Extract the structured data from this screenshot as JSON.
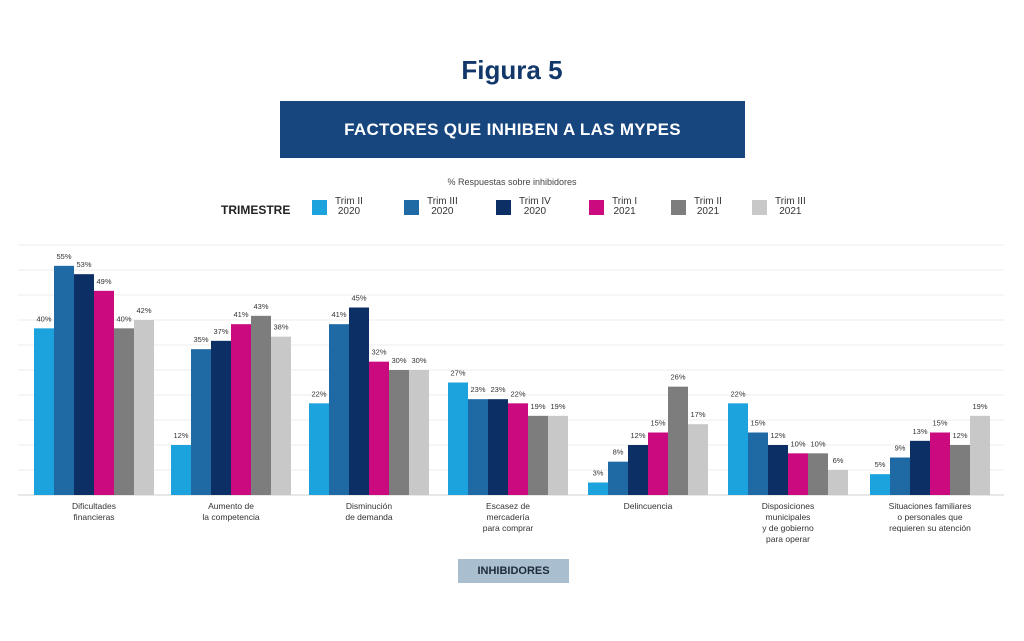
{
  "figure_title": "Figura 5",
  "banner_title": "FACTORES QUE INHIBEN A LAS MYPES",
  "subtitle": "% Respuestas sobre inhibidores",
  "legend": {
    "title": "TRIMESTRE",
    "items": [
      {
        "line1": "Trim II",
        "line2": "2020",
        "color": "#1ca3dd"
      },
      {
        "line1": "Trim III",
        "line2": "2020",
        "color": "#1f6aa5"
      },
      {
        "line1": "Trim IV",
        "line2": "2020",
        "color": "#0c2f66"
      },
      {
        "line1": "Trim I",
        "line2": "2021",
        "color": "#cc0a80"
      },
      {
        "line1": "Trim II",
        "line2": "2021",
        "color": "#7d7d7d"
      },
      {
        "line1": "Trim III",
        "line2": "2021",
        "color": "#c8c8c8"
      }
    ]
  },
  "x_axis_title": "INHIBIDORES",
  "chart_data": {
    "type": "bar",
    "title": "FACTORES QUE INHIBEN A LAS MYPES",
    "subtitle": "% Respuestas sobre inhibidores",
    "xlabel": "INHIBIDORES",
    "ylabel": "",
    "ylim": [
      0,
      60
    ],
    "grid": true,
    "legend_position": "top",
    "categories": [
      [
        "Dificultades",
        "financieras"
      ],
      [
        "Aumento de",
        "la competencia"
      ],
      [
        "Disminución",
        "de demanda"
      ],
      [
        "Escasez de",
        "mercadería",
        "para comprar"
      ],
      [
        "Delincuencia"
      ],
      [
        "Disposiciones",
        "municipales",
        "y de gobierno",
        "para operar"
      ],
      [
        "Situaciones familiares",
        "o personales que",
        "requieren su atención"
      ]
    ],
    "series": [
      {
        "name": "Trim II 2020",
        "color": "#1ca3dd",
        "values": [
          40,
          12,
          22,
          27,
          3,
          22,
          5
        ]
      },
      {
        "name": "Trim III 2020",
        "color": "#1f6aa5",
        "values": [
          55,
          35,
          41,
          23,
          8,
          15,
          9
        ]
      },
      {
        "name": "Trim IV 2020",
        "color": "#0c2f66",
        "values": [
          53,
          37,
          45,
          23,
          12,
          12,
          13
        ]
      },
      {
        "name": "Trim I 2021",
        "color": "#cc0a80",
        "values": [
          49,
          41,
          32,
          22,
          15,
          10,
          15
        ]
      },
      {
        "name": "Trim II 2021",
        "color": "#7d7d7d",
        "values": [
          40,
          43,
          30,
          19,
          26,
          10,
          12
        ]
      },
      {
        "name": "Trim III 2021",
        "color": "#c8c8c8",
        "values": [
          42,
          38,
          30,
          19,
          17,
          6,
          19
        ]
      }
    ],
    "value_suffix": "%"
  }
}
